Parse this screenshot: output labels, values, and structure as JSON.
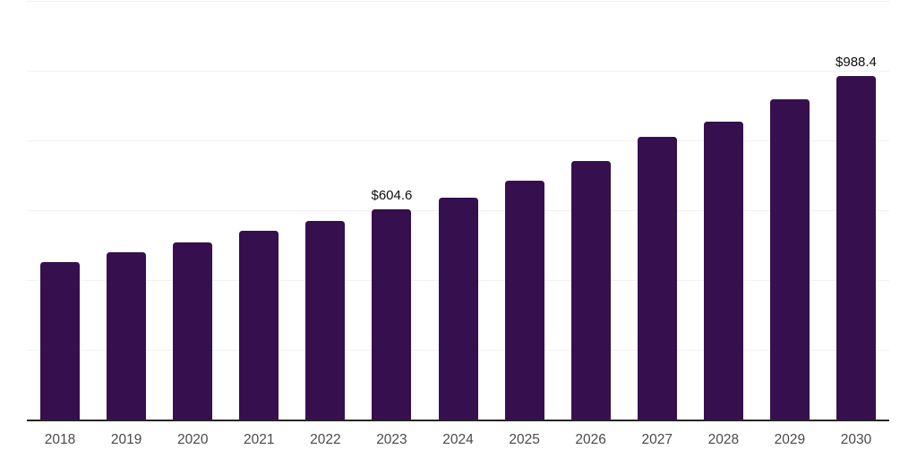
{
  "chart_data": {
    "type": "bar",
    "title": "",
    "xlabel": "",
    "ylabel": "",
    "categories": [
      "2018",
      "2019",
      "2020",
      "2021",
      "2022",
      "2023",
      "2024",
      "2025",
      "2026",
      "2027",
      "2028",
      "2029",
      "2030"
    ],
    "values": [
      455,
      481,
      511,
      543,
      571,
      604.6,
      639,
      687,
      744,
      812,
      857,
      920,
      988.4
    ],
    "data_labels": [
      "",
      "",
      "",
      "",
      "",
      "$604.6",
      "",
      "",
      "",
      "",
      "",
      "",
      "$988.4"
    ],
    "ylim": [
      0,
      1200
    ],
    "gridline_step": 200,
    "grid": true,
    "legend": false,
    "y_axis_labels_visible": false,
    "colors": {
      "bar": "#36104E",
      "gridline": "#F1F1F1",
      "axis_line": "#262626",
      "tick_label": "#4A4A4A",
      "data_label": "#0D0D0D"
    }
  }
}
